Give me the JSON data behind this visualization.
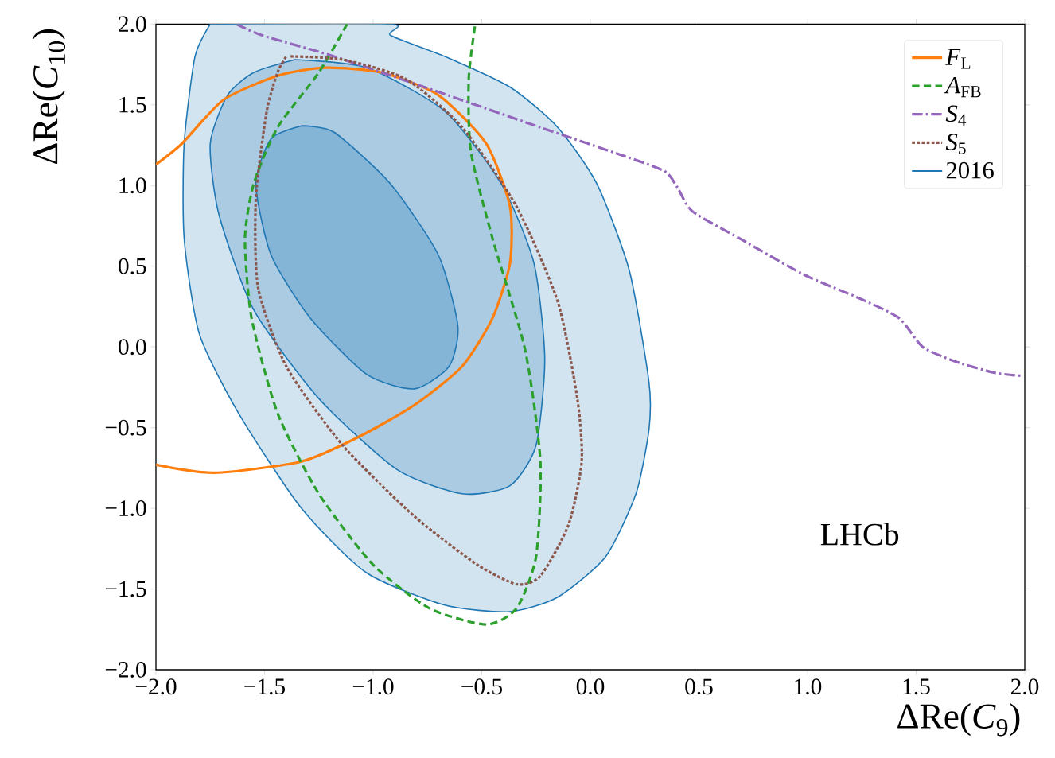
{
  "chart_data": {
    "type": "line",
    "xlabel": "ΔRe(*C*$_{9}$)",
    "ylabel": "ΔRe(*C*$_{10}$)",
    "xlim": [
      -2,
      2
    ],
    "ylim": [
      -2,
      2
    ],
    "xticks": [
      {
        "value": -2,
        "label": "−2.0"
      },
      {
        "value": -1.5,
        "label": "−1.5"
      },
      {
        "value": -1,
        "label": "−1.0"
      },
      {
        "value": -0.5,
        "label": "−0.5"
      },
      {
        "value": 0,
        "label": "0.0"
      },
      {
        "value": 0.5,
        "label": "0.5"
      },
      {
        "value": 1,
        "label": "1.0"
      },
      {
        "value": 1.5,
        "label": "1.5"
      },
      {
        "value": 2,
        "label": "2.0"
      }
    ],
    "yticks": [
      {
        "value": -2,
        "label": "−2.0"
      },
      {
        "value": -1.5,
        "label": "−1.5"
      },
      {
        "value": -1,
        "label": "−1.0"
      },
      {
        "value": -0.5,
        "label": "−0.5"
      },
      {
        "value": 0,
        "label": "0.0"
      },
      {
        "value": 0.5,
        "label": "0.5"
      },
      {
        "value": 1,
        "label": "1.0"
      },
      {
        "value": 1.5,
        "label": "1.5"
      },
      {
        "value": 2,
        "label": "2.0"
      }
    ],
    "legend": "top right",
    "marker": "none",
    "annotations": [
      "LHCb"
    ],
    "series": [
      {
        "name": "2016",
        "type": "area",
        "color": "#1f77b4",
        "x": [
          -1.75,
          -0.92,
          -0.92,
          -0.67,
          -0.37,
          -0.15,
          0.03,
          0.18,
          0.27,
          0.27,
          0.21,
          0.07,
          -0.15,
          -0.37,
          -0.67,
          -1.03,
          -1.33,
          -1.62,
          -1.8,
          -1.87,
          -1.87,
          -1.82,
          -1.75
        ],
        "values": [
          2,
          2,
          1.93,
          1.8,
          1.61,
          1.36,
          1.01,
          0.47,
          -0.22,
          -0.51,
          -0.91,
          -1.3,
          -1.55,
          -1.64,
          -1.6,
          -1.4,
          -1.0,
          -0.41,
          0.08,
          0.67,
          1.26,
          1.8,
          2
        ]
      },
      {
        "type": "area",
        "color": "#1f77b4",
        "x": [
          -1.36,
          -1.03,
          -0.67,
          -0.41,
          -0.26,
          -0.21,
          -0.25,
          -0.37,
          -0.59,
          -0.89,
          -1.25,
          -1.55,
          -1.71,
          -1.75,
          -1.67,
          -1.55,
          -1.36
        ],
        "values": [
          1.78,
          1.73,
          1.46,
          1.01,
          0.52,
          -0.07,
          -0.61,
          -0.86,
          -0.91,
          -0.76,
          -0.32,
          0.23,
          0.82,
          1.26,
          1.56,
          1.7,
          1.78
        ]
      },
      {
        "type": "area",
        "color": "#1f77b4",
        "x": [
          -1.33,
          -1.18,
          -0.92,
          -0.7,
          -0.61,
          -0.65,
          -0.81,
          -1.03,
          -1.29,
          -1.47,
          -1.54,
          -1.47,
          -1.33
        ],
        "values": [
          1.37,
          1.33,
          1.01,
          0.57,
          0.13,
          -0.12,
          -0.26,
          -0.17,
          0.18,
          0.57,
          1.01,
          1.29,
          1.37
        ]
      },
      {
        "name": "*F*$_{L}$",
        "color": "#ff7f0e",
        "line_style": "solid",
        "x": [
          -2,
          -1.88,
          -1.69,
          -1.44,
          -1.22,
          -0.96,
          -0.7,
          -0.48,
          -0.37,
          -0.37,
          -0.45,
          -0.59,
          -0.81,
          -1.07,
          -1.33,
          -1.73,
          -2
        ],
        "values": [
          1.13,
          1.26,
          1.53,
          1.68,
          1.73,
          1.7,
          1.56,
          1.26,
          0.87,
          0.52,
          0.18,
          -0.12,
          -0.36,
          -0.56,
          -0.71,
          -0.78,
          -0.73
        ]
      },
      {
        "name": "*A*$_{FB}$",
        "color": "#2ca02c",
        "line_style": "dashed",
        "x": [
          -1.12,
          -1.25,
          -1.44,
          -1.55,
          -1.59,
          -1.56,
          -1.44,
          -1.25,
          -1.0,
          -0.74,
          -0.48,
          -0.34,
          -0.25,
          -0.23,
          -0.3,
          -0.45,
          -0.55,
          -0.56,
          -0.53
        ],
        "values": [
          2,
          1.7,
          1.36,
          1.01,
          0.67,
          0.18,
          -0.41,
          -0.91,
          -1.35,
          -1.62,
          -1.72,
          -1.62,
          -1.3,
          -0.71,
          -0.02,
          0.67,
          1.21,
          1.66,
          2
        ]
      },
      {
        "name": "*S*$_{4}$",
        "color": "#9467bd",
        "line_style": "dashdot",
        "x": [
          -1.63,
          -1.51,
          -1.18,
          -0.7,
          -0.23,
          0.14,
          0.34,
          0.4,
          0.47,
          0.69,
          0.98,
          1.24,
          1.42,
          1.53,
          1.68,
          1.86,
          1.99
        ],
        "values": [
          2,
          1.93,
          1.8,
          1.58,
          1.36,
          1.19,
          1.09,
          0.99,
          0.84,
          0.67,
          0.45,
          0.3,
          0.18,
          0.0,
          -0.09,
          -0.16,
          -0.18
        ]
      },
      {
        "name": "*S*$_{5}$",
        "color": "#8c564b",
        "line_style": "dotted",
        "x": [
          -1.38,
          -1.14,
          -0.85,
          -0.59,
          -0.34,
          -0.15,
          -0.06,
          -0.04,
          -0.1,
          -0.23,
          -0.34,
          -0.52,
          -0.81,
          -1.14,
          -1.4,
          -1.53,
          -1.54,
          -1.49,
          -1.44,
          -1.4
        ],
        "values": [
          1.8,
          1.78,
          1.66,
          1.36,
          0.87,
          0.28,
          -0.32,
          -0.71,
          -1.1,
          -1.42,
          -1.47,
          -1.35,
          -1.05,
          -0.61,
          -0.12,
          0.37,
          0.92,
          1.46,
          1.7,
          1.8
        ]
      }
    ]
  }
}
